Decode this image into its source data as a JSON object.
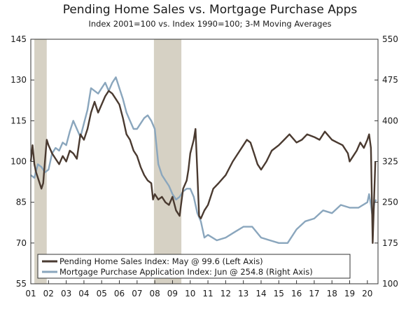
{
  "chart_data": {
    "type": "line",
    "title": "Pending Home Sales vs. Mortgage Purchase Apps",
    "subtitle": "Index 2001=100 vs. Index 1990=100; 3-M Moving Averages",
    "x_tick_labels": [
      "01",
      "02",
      "03",
      "04",
      "05",
      "06",
      "07",
      "08",
      "09",
      "10",
      "11",
      "12",
      "13",
      "14",
      "15",
      "16",
      "17",
      "18",
      "19",
      "20"
    ],
    "x_range": [
      2001.0,
      2020.6
    ],
    "y_left_range": [
      55,
      145
    ],
    "y_left_ticks": [
      "55",
      "70",
      "85",
      "100",
      "115",
      "130",
      "145"
    ],
    "y_right_range": [
      100,
      550
    ],
    "y_right_ticks": [
      "100",
      "175",
      "250",
      "325",
      "400",
      "475",
      "550"
    ],
    "recessions": [
      [
        2001.2,
        2001.9
      ],
      [
        2007.95,
        2009.5
      ]
    ],
    "legend_position": "bottom-left",
    "colors": {
      "pending": "#4a3a30",
      "mortgage": "#8aa6bd",
      "recession": "#d6d1c4"
    },
    "series": [
      {
        "name": "Pending Home Sales Index: May @ 99.6 (Left Axis)",
        "axis": "left",
        "x": [
          2001.0,
          2001.1,
          2001.2,
          2001.3,
          2001.45,
          2001.6,
          2001.7,
          2001.8,
          2001.9,
          2002.0,
          2002.2,
          2002.4,
          2002.6,
          2002.8,
          2003.0,
          2003.2,
          2003.4,
          2003.6,
          2003.8,
          2004.0,
          2004.2,
          2004.4,
          2004.6,
          2004.8,
          2005.0,
          2005.2,
          2005.4,
          2005.6,
          2005.8,
          2006.0,
          2006.2,
          2006.4,
          2006.6,
          2006.8,
          2007.0,
          2007.2,
          2007.4,
          2007.6,
          2007.8,
          2007.9,
          2008.0,
          2008.2,
          2008.4,
          2008.6,
          2008.8,
          2009.0,
          2009.2,
          2009.4,
          2009.6,
          2009.8,
          2009.9,
          2010.0,
          2010.2,
          2010.3,
          2010.4,
          2010.5,
          2010.6,
          2010.8,
          2011.0,
          2011.3,
          2011.6,
          2012.0,
          2012.4,
          2012.8,
          2013.0,
          2013.2,
          2013.4,
          2013.6,
          2013.8,
          2014.0,
          2014.3,
          2014.6,
          2015.0,
          2015.3,
          2015.6,
          2016.0,
          2016.3,
          2016.6,
          2017.0,
          2017.3,
          2017.6,
          2018.0,
          2018.3,
          2018.6,
          2018.9,
          2019.0,
          2019.2,
          2019.4,
          2019.6,
          2019.8,
          2020.0,
          2020.1,
          2020.2,
          2020.3,
          2020.4,
          2020.45
        ],
        "values": [
          100,
          106,
          99,
          96,
          93,
          90,
          92,
          100,
          108,
          106,
          103,
          101,
          99,
          102,
          100,
          104,
          103,
          101,
          110,
          108,
          112,
          118,
          122,
          118,
          121,
          124,
          126,
          125,
          123,
          121,
          116,
          110,
          108,
          104,
          102,
          98,
          95,
          93,
          92,
          86,
          88,
          86,
          87,
          85,
          84,
          87,
          82,
          80,
          90,
          93,
          97,
          103,
          108,
          112,
          96,
          80,
          79,
          82,
          84,
          90,
          92,
          95,
          100,
          104,
          106,
          108,
          107,
          103,
          99,
          97,
          100,
          104,
          106,
          108,
          110,
          107,
          108,
          110,
          109,
          108,
          111,
          108,
          107,
          106,
          103,
          100,
          102,
          104,
          107,
          105,
          108,
          110,
          105,
          70,
          90,
          100
        ]
      },
      {
        "name": "Mortgage Purchase Application Index: Jun @ 254.8 (Right Axis)",
        "axis": "right",
        "x": [
          2001.0,
          2001.2,
          2001.4,
          2001.6,
          2001.8,
          2002.0,
          2002.2,
          2002.4,
          2002.6,
          2002.8,
          2003.0,
          2003.2,
          2003.4,
          2003.6,
          2003.8,
          2004.0,
          2004.2,
          2004.4,
          2004.6,
          2004.8,
          2005.0,
          2005.2,
          2005.4,
          2005.6,
          2005.8,
          2006.0,
          2006.2,
          2006.4,
          2006.6,
          2006.8,
          2007.0,
          2007.2,
          2007.4,
          2007.6,
          2007.8,
          2008.0,
          2008.2,
          2008.4,
          2008.6,
          2008.8,
          2009.0,
          2009.2,
          2009.4,
          2009.6,
          2009.8,
          2010.0,
          2010.2,
          2010.4,
          2010.6,
          2010.8,
          2011.0,
          2011.5,
          2012.0,
          2012.5,
          2013.0,
          2013.5,
          2014.0,
          2014.5,
          2015.0,
          2015.5,
          2016.0,
          2016.5,
          2017.0,
          2017.5,
          2018.0,
          2018.5,
          2019.0,
          2019.5,
          2020.0,
          2020.1,
          2020.2,
          2020.3,
          2020.4,
          2020.5
        ],
        "values": [
          300,
          295,
          320,
          315,
          305,
          310,
          340,
          350,
          345,
          360,
          355,
          380,
          400,
          385,
          370,
          395,
          420,
          460,
          455,
          450,
          460,
          470,
          455,
          470,
          480,
          460,
          440,
          415,
          400,
          385,
          385,
          395,
          405,
          410,
          400,
          385,
          320,
          300,
          290,
          280,
          265,
          255,
          260,
          270,
          275,
          275,
          260,
          230,
          215,
          185,
          190,
          180,
          185,
          195,
          205,
          205,
          185,
          180,
          175,
          175,
          200,
          215,
          220,
          235,
          230,
          245,
          240,
          240,
          250,
          265,
          245,
          220,
          250,
          254.8
        ]
      }
    ]
  }
}
